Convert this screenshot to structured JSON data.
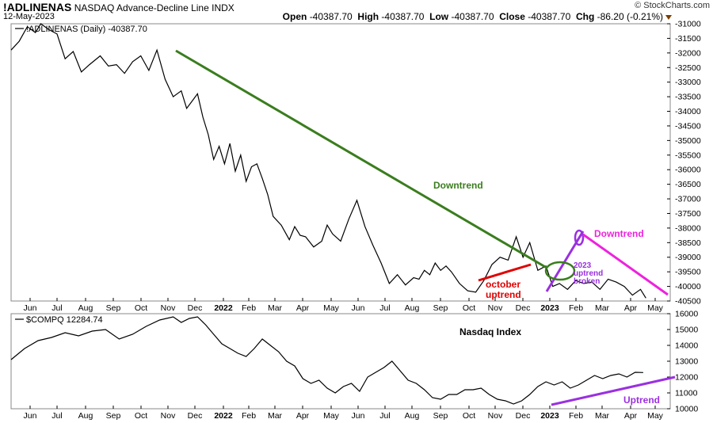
{
  "header": {
    "symbol": "!ADLINENAS",
    "description": "NASDAQ Advance-Decline Line INDX",
    "date": "12-May-2023",
    "open_label": "Open",
    "open": "-40387.70",
    "high_label": "High",
    "high": "-40387.70",
    "low_label": "Low",
    "low": "-40387.70",
    "close_label": "Close",
    "close": "-40387.70",
    "chg_label": "Chg",
    "chg": "-86.20 (-0.21%)",
    "brand": "© StockCharts.com"
  },
  "chart_data": [
    {
      "type": "line",
      "name": "advance-decline-line",
      "pane_label": "!ADLINENAS (Daily) -40387.70",
      "ylim": [
        -40500,
        -31000
      ],
      "y_ticks": [
        -31000,
        -31500,
        -32000,
        -32500,
        -33000,
        -33500,
        -34000,
        -34500,
        -35000,
        -35500,
        -36000,
        -36500,
        -37000,
        -37500,
        -38000,
        -38500,
        -39000,
        -39500,
        -40000,
        -40500
      ],
      "x_tick_labels": [
        "Jun",
        "Jul",
        "Aug",
        "Sep",
        "Oct",
        "Nov",
        "Dec",
        "2022",
        "Feb",
        "Mar",
        "Apr",
        "May",
        "Jun",
        "Jul",
        "Aug",
        "Sep",
        "Oct",
        "Nov",
        "Dec",
        "2023",
        "Feb",
        "Mar",
        "Apr",
        "May"
      ],
      "bold_x_ticks": [
        "2022",
        "2023"
      ],
      "xlim": [
        0,
        24.4
      ],
      "x": [
        0,
        0.3,
        0.6,
        0.9,
        1.1,
        1.4,
        1.7,
        2,
        2.3,
        2.6,
        2.9,
        3.3,
        3.6,
        3.9,
        4.2,
        4.5,
        4.8,
        5.1,
        5.4,
        5.7,
        6,
        6.3,
        6.5,
        6.7,
        6.9,
        7.1,
        7.3,
        7.5,
        7.7,
        7.9,
        8.1,
        8.3,
        8.5,
        8.7,
        8.9,
        9.1,
        9.3,
        9.5,
        9.7,
        10,
        10.3,
        10.5,
        10.7,
        10.9,
        11.2,
        11.5,
        11.7,
        11.9,
        12.2,
        12.5,
        12.8,
        13.1,
        13.4,
        13.7,
        14,
        14.3,
        14.6,
        14.9,
        15.1,
        15.3,
        15.5,
        15.7,
        15.9,
        16.1,
        16.3,
        16.6,
        16.9,
        17.2,
        17.5,
        17.8,
        18.1,
        18.4,
        18.7,
        18.95,
        19.2,
        19.5,
        19.8,
        20.05,
        20.3,
        20.6,
        20.9,
        21.2,
        21.5,
        21.8,
        22.1,
        22.4,
        22.7,
        23,
        23.3,
        23.5
      ],
      "values": [
        -31900,
        -31600,
        -31100,
        -31300,
        -31000,
        -31200,
        -31350,
        -32200,
        -31950,
        -32650,
        -32400,
        -32100,
        -32450,
        -32400,
        -32700,
        -32300,
        -32100,
        -32600,
        -31900,
        -32900,
        -33500,
        -33300,
        -33900,
        -33650,
        -33400,
        -34200,
        -34800,
        -35650,
        -35200,
        -35800,
        -35100,
        -36050,
        -35500,
        -36400,
        -35900,
        -35800,
        -36300,
        -36850,
        -37600,
        -37900,
        -38400,
        -37950,
        -38250,
        -38300,
        -38650,
        -38450,
        -37900,
        -38200,
        -38450,
        -37700,
        -37050,
        -37950,
        -38600,
        -39200,
        -39900,
        -39600,
        -39950,
        -39700,
        -39750,
        -39450,
        -39600,
        -39200,
        -39450,
        -39300,
        -39500,
        -39900,
        -40150,
        -40200,
        -39800,
        -39250,
        -39000,
        -39100,
        -38300,
        -39000,
        -38500,
        -39450,
        -39300,
        -40000,
        -39900,
        -40100,
        -39800,
        -39900,
        -39850,
        -40100,
        -39750,
        -39850,
        -40000,
        -40300,
        -40100,
        -40400
      ],
      "annotations": {
        "downtrend_main": "Downtrend",
        "october_uptrend": [
          "october",
          "uptrend"
        ],
        "uptrend_broken": [
          "2023",
          "uptrend",
          "broken"
        ],
        "downtrend_recent": "Downtrend",
        "colors": {
          "green": "#3a7d1e",
          "red": "#e00000",
          "purple": "#9a30e0",
          "magenta": "#ee22dd"
        }
      }
    },
    {
      "type": "line",
      "name": "nasdaq-composite",
      "pane_label": "$COMPQ 12284.74",
      "title": "Nasdaq Index",
      "ylim": [
        10000,
        16000
      ],
      "y_ticks": [
        10000,
        11000,
        12000,
        13000,
        14000,
        15000,
        16000
      ],
      "x_tick_labels": [
        "Jun",
        "Jul",
        "Aug",
        "Sep",
        "Oct",
        "Nov",
        "Dec",
        "2022",
        "Feb",
        "Mar",
        "Apr",
        "May",
        "Jun",
        "Jul",
        "Aug",
        "Sep",
        "Oct",
        "Nov",
        "Dec",
        "2023",
        "Feb",
        "Mar",
        "Apr",
        "May"
      ],
      "bold_x_ticks": [
        "2022",
        "2023"
      ],
      "xlim": [
        0,
        24.4
      ],
      "x": [
        0,
        0.5,
        1,
        1.5,
        2,
        2.5,
        3,
        3.5,
        4,
        4.5,
        5,
        5.5,
        6,
        6.3,
        6.6,
        6.9,
        7.2,
        7.5,
        7.8,
        8.1,
        8.4,
        8.7,
        9,
        9.3,
        9.6,
        9.9,
        10.2,
        10.5,
        10.8,
        11.1,
        11.4,
        11.7,
        12,
        12.3,
        12.6,
        12.9,
        13.2,
        13.5,
        13.8,
        14.1,
        14.4,
        14.7,
        15,
        15.3,
        15.6,
        15.9,
        16.2,
        16.5,
        16.8,
        17.1,
        17.4,
        17.7,
        18,
        18.3,
        18.6,
        18.9,
        19.2,
        19.5,
        19.8,
        20.1,
        20.4,
        20.7,
        21,
        21.3,
        21.6,
        21.9,
        22.2,
        22.5,
        22.8,
        23.1,
        23.4
      ],
      "values": [
        13100,
        13800,
        14300,
        14500,
        14800,
        14600,
        14900,
        15000,
        14400,
        14700,
        15200,
        15600,
        15800,
        15450,
        15700,
        15800,
        15300,
        14700,
        14100,
        13800,
        13500,
        13300,
        13800,
        14400,
        14000,
        13600,
        13000,
        12700,
        11900,
        11600,
        11800,
        11300,
        11000,
        11400,
        11600,
        11100,
        12000,
        12300,
        12600,
        13000,
        12400,
        11800,
        11600,
        11200,
        10700,
        10600,
        10900,
        10900,
        11200,
        11200,
        11300,
        10900,
        10600,
        10500,
        10300,
        10500,
        10900,
        11400,
        11700,
        11500,
        11700,
        11300,
        11500,
        11800,
        12100,
        11900,
        12100,
        12200,
        12000,
        12300,
        12284.74
      ],
      "annotations": {
        "uptrend": "Uptrend",
        "colors": {
          "purple": "#9a30e0"
        }
      }
    }
  ]
}
